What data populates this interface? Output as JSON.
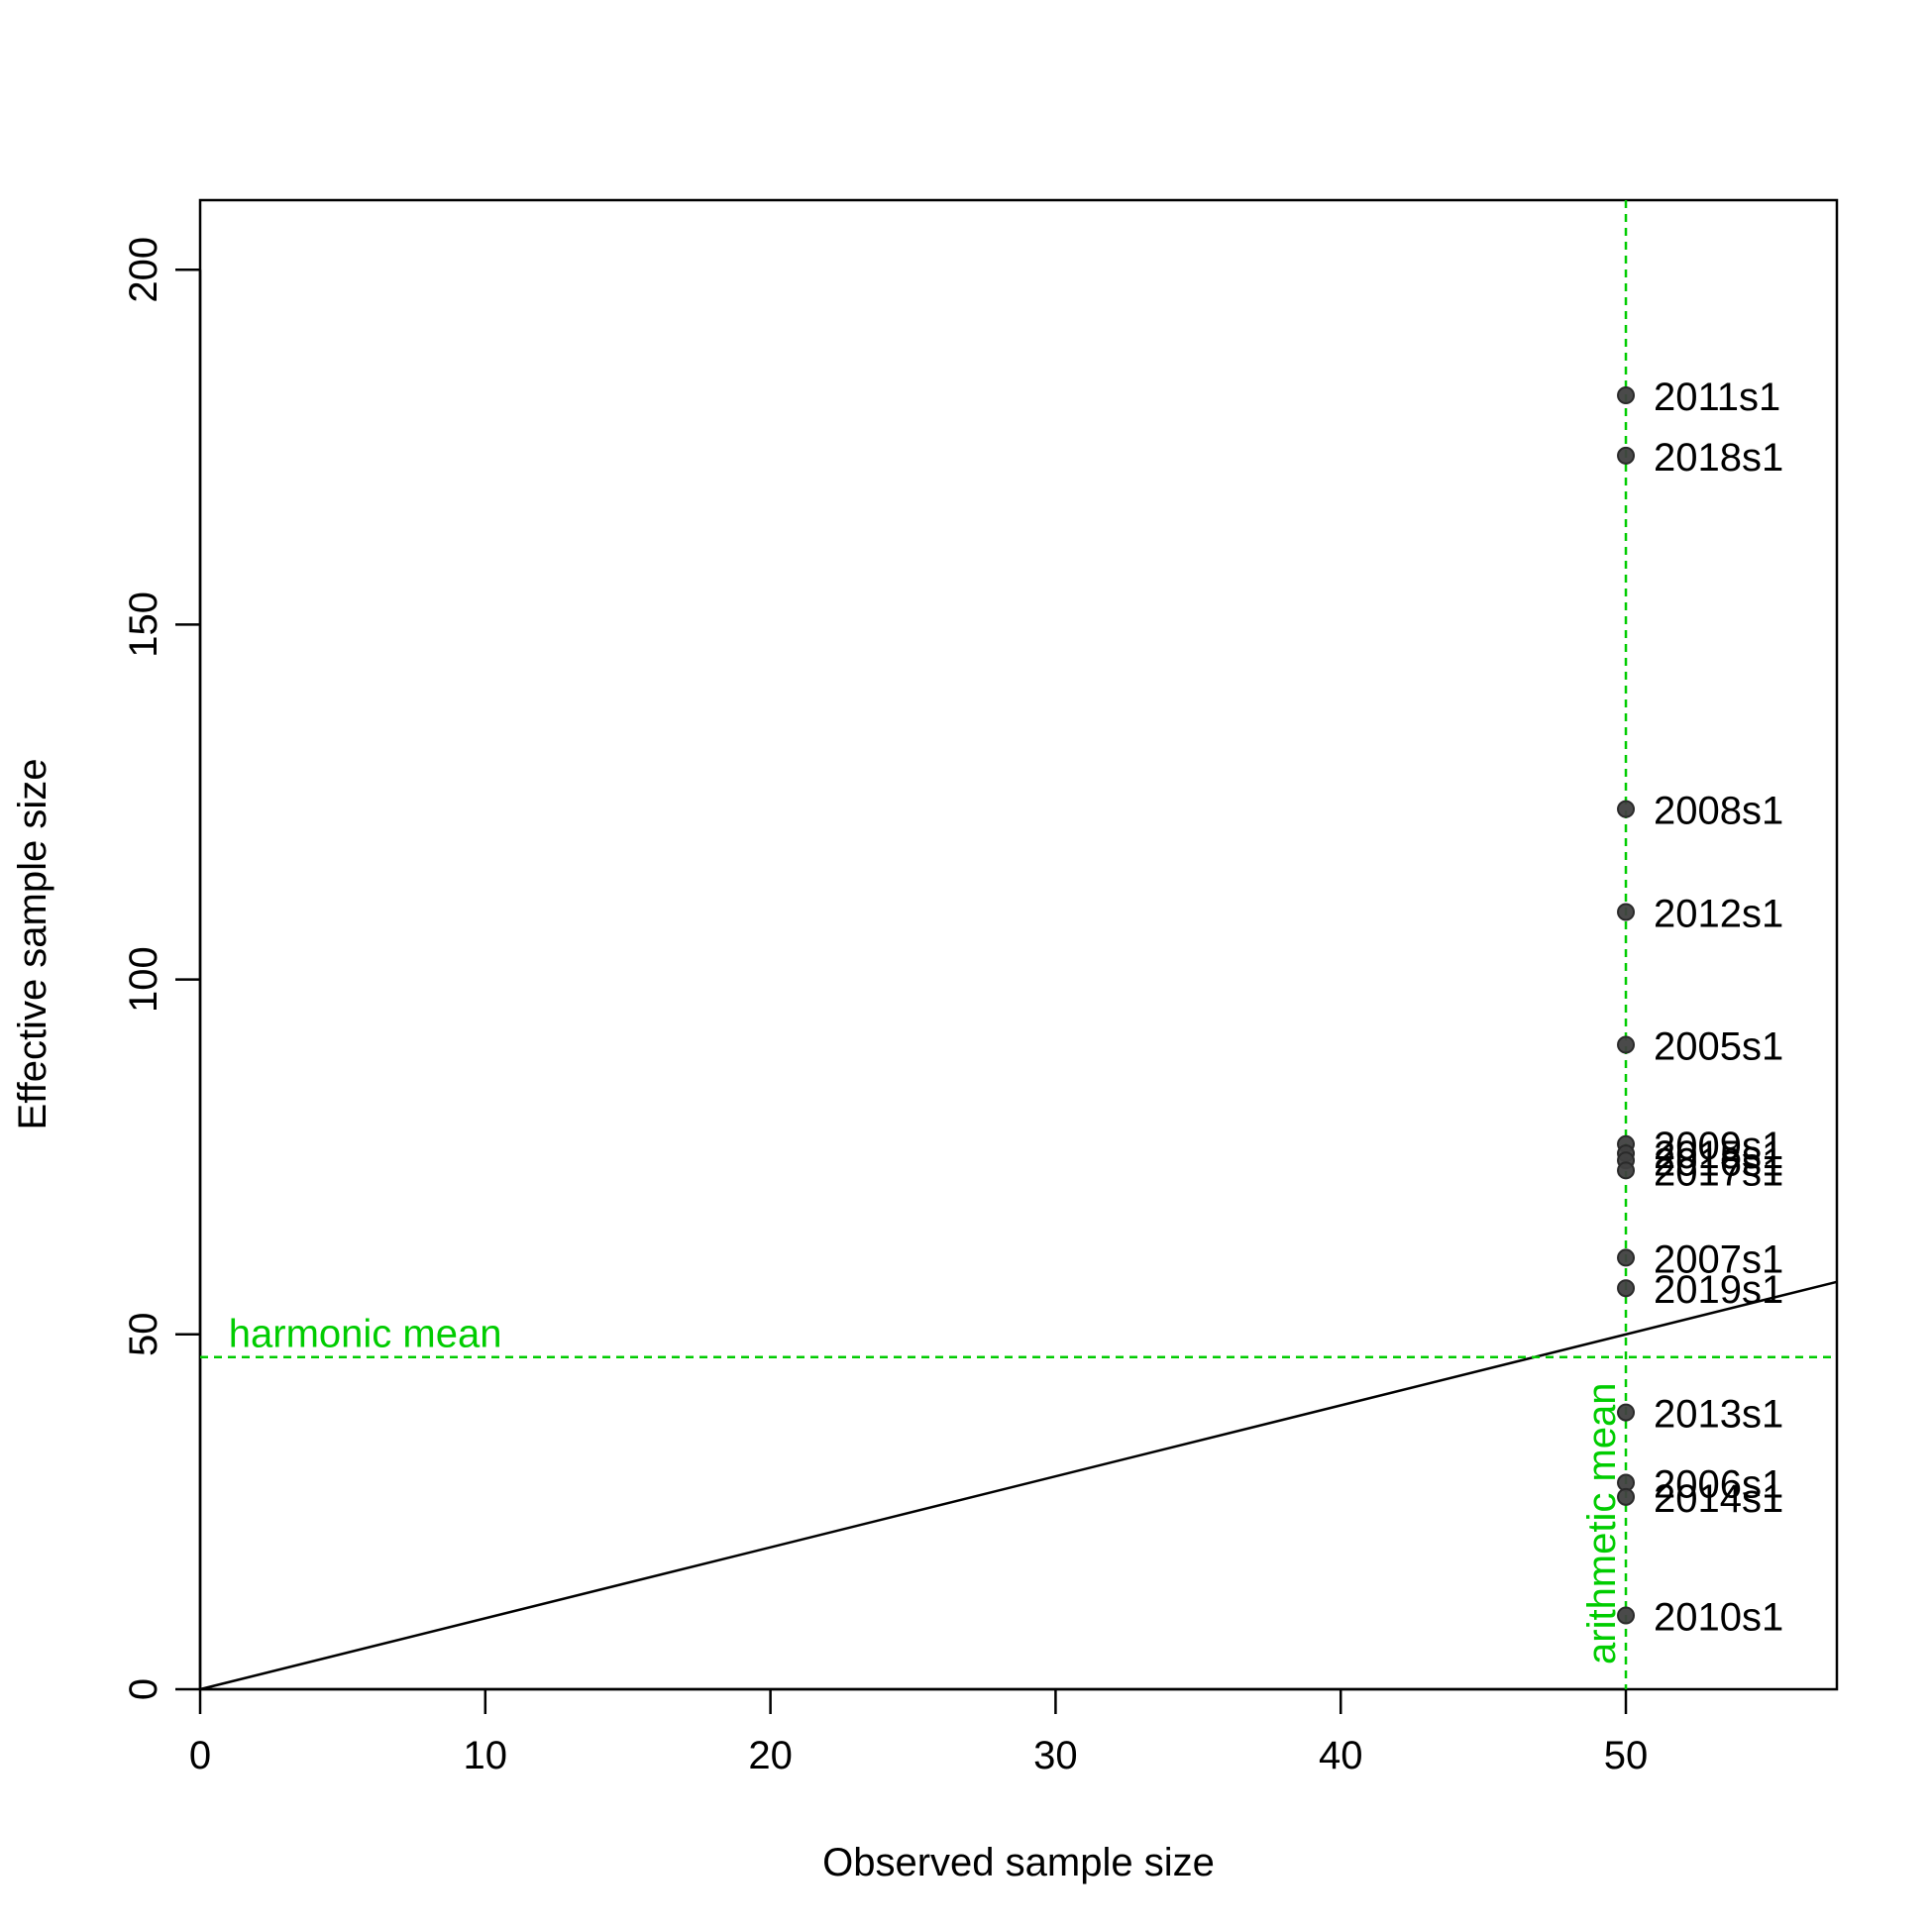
{
  "chart_data": {
    "type": "scatter",
    "xlabel": "Observed sample size",
    "ylabel": "Effective sample size",
    "xlim": [
      0,
      57.4
    ],
    "ylim": [
      0,
      209.8
    ],
    "x_ticks": [
      0,
      10,
      20,
      30,
      40,
      50
    ],
    "y_ticks": [
      0,
      50,
      100,
      150,
      200
    ],
    "points": [
      {
        "label": "2005s1",
        "x": 50,
        "y": 90.8
      },
      {
        "label": "2006s1",
        "x": 50,
        "y": 29.1
      },
      {
        "label": "2007s1",
        "x": 50,
        "y": 60.8
      },
      {
        "label": "2008s1",
        "x": 50,
        "y": 124.0
      },
      {
        "label": "2009s1",
        "x": 50,
        "y": 76.8
      },
      {
        "label": "2010s1",
        "x": 50,
        "y": 10.4
      },
      {
        "label": "2011s1",
        "x": 50,
        "y": 182.3
      },
      {
        "label": "2012s1",
        "x": 50,
        "y": 109.5
      },
      {
        "label": "2013s1",
        "x": 50,
        "y": 39.0
      },
      {
        "label": "2014s1",
        "x": 50,
        "y": 27.1
      },
      {
        "label": "2015s1",
        "x": 50,
        "y": 75.5
      },
      {
        "label": "2016s1",
        "x": 50,
        "y": 74.5
      },
      {
        "label": "2017s1",
        "x": 50,
        "y": 73.1
      },
      {
        "label": "2018s1",
        "x": 50,
        "y": 173.8
      },
      {
        "label": "2019s1",
        "x": 50,
        "y": 56.5
      }
    ],
    "identity_line": {
      "slope": 1,
      "intercept": 0
    },
    "reference_lines": {
      "harmonic_mean": {
        "label": "harmonic mean",
        "y": 46.8,
        "color": "#00CC00"
      },
      "arithmetic_mean": {
        "label": "arithmetic mean",
        "x": 50,
        "color": "#00CC00"
      }
    },
    "point_color": "#404040",
    "grid": false
  }
}
